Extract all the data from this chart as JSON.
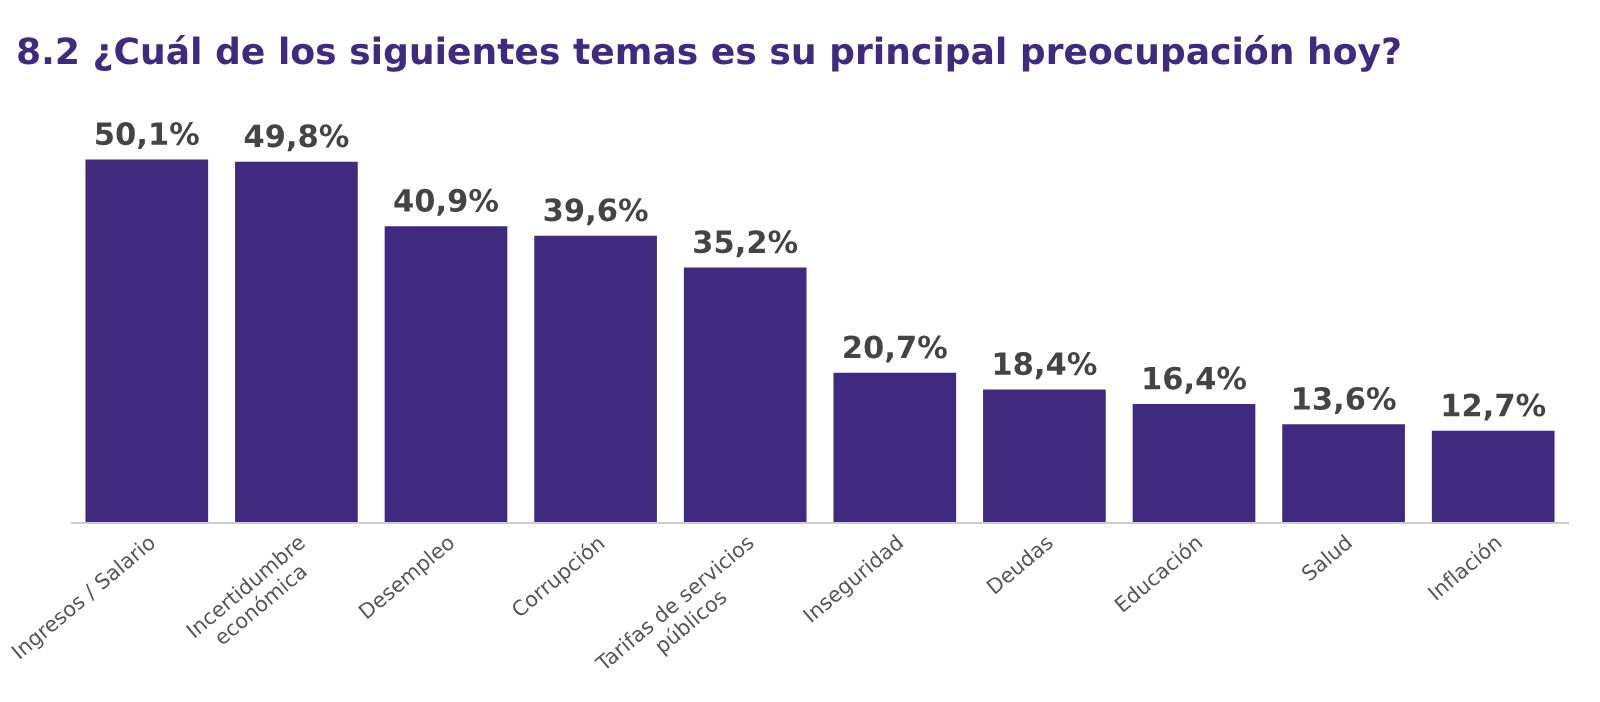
{
  "chart_data": {
    "type": "bar",
    "title": "8.2 ¿Cuál de los siguientes temas es su principal preocupación hoy?",
    "categories": [
      "Ingresos / Salario",
      "Incertidumbre\neconómica",
      "Desempleo",
      "Corrupción",
      "Tarifas de servicios\npúblicos",
      "Inseguridad",
      "Deudas",
      "Educación",
      "Salud",
      "Inflación"
    ],
    "values": [
      50.1,
      49.8,
      40.9,
      39.6,
      35.2,
      20.7,
      18.4,
      16.4,
      13.6,
      12.7
    ],
    "value_labels": [
      "50,1%",
      "49,8%",
      "40,9%",
      "39,6%",
      "35,2%",
      "20,7%",
      "18,4%",
      "16,4%",
      "13,6%",
      "12,7%"
    ],
    "color": "#3f2a80",
    "grid": false,
    "legend": false
  }
}
